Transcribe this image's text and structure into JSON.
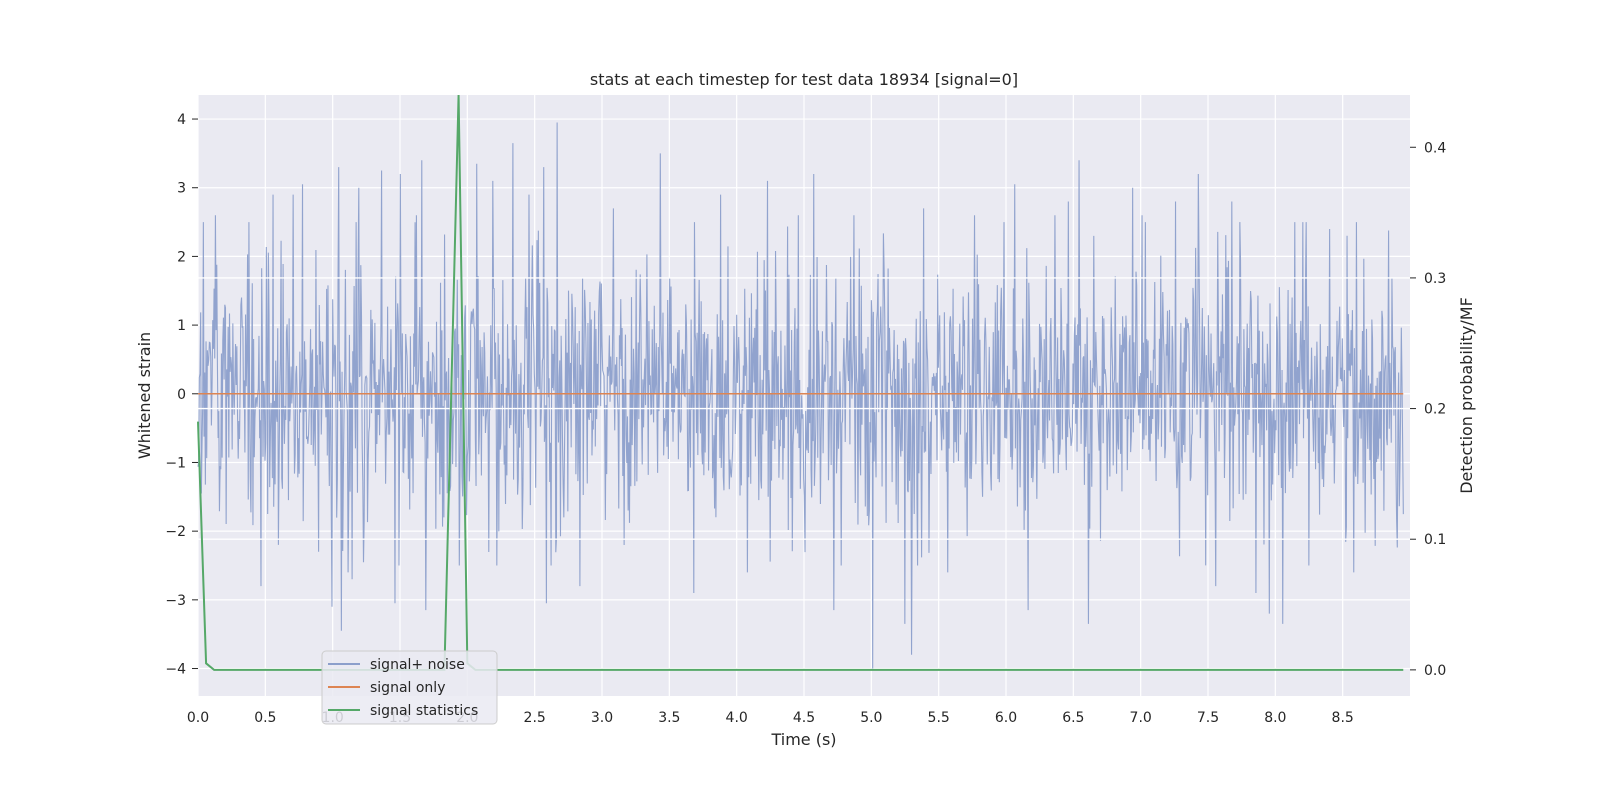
{
  "chart_data": {
    "type": "line",
    "title": "stats at each timestep for test data 18934 [signal=0]",
    "xlabel": "Time (s)",
    "ylabel": "Whitened strain",
    "ylabel_right": "Detection probability/MF",
    "xlim": [
      0,
      9.0
    ],
    "ylim": [
      -4.4,
      4.35
    ],
    "ylim_right": [
      -0.02,
      0.44
    ],
    "x_ticks": [
      0.0,
      0.5,
      1.0,
      1.5,
      2.0,
      2.5,
      3.0,
      3.5,
      4.0,
      4.5,
      5.0,
      5.5,
      6.0,
      6.5,
      7.0,
      7.5,
      8.0,
      8.5
    ],
    "x_tick_labels": [
      "0.0",
      "0.5",
      "1.0",
      "1.5",
      "2.0",
      "2.5",
      "3.0",
      "3.5",
      "4.0",
      "4.5",
      "5.0",
      "5.5",
      "6.0",
      "6.5",
      "7.0",
      "7.5",
      "8.0",
      "8.5"
    ],
    "y_ticks": [
      4,
      3,
      2,
      1,
      0,
      -1,
      -2,
      -3,
      -4
    ],
    "y_tick_labels": [
      "4",
      "3",
      "2",
      "1",
      "0",
      "−1",
      "−2",
      "−3",
      "−4"
    ],
    "y2_ticks": [
      0.4,
      0.3,
      0.2,
      0.1,
      0.0
    ],
    "y2_tick_labels": [
      "0.4",
      "0.3",
      "0.2",
      "0.1",
      "0.0"
    ],
    "grid": true,
    "legend_position": "lower-left",
    "series": [
      {
        "name": "signal+ noise",
        "color": "#8c9fcb",
        "axis": "left",
        "kind": "noise",
        "duration_s": 9.0,
        "peaks": [
          {
            "x": 0.13,
            "y": 2.6
          },
          {
            "x": 0.38,
            "y": 2.5
          },
          {
            "x": 0.47,
            "y": -2.8
          },
          {
            "x": 0.56,
            "y": 2.9
          },
          {
            "x": 0.6,
            "y": -2.2
          },
          {
            "x": 0.71,
            "y": 2.9
          },
          {
            "x": 0.78,
            "y": 3.05
          },
          {
            "x": 0.9,
            "y": -2.3
          },
          {
            "x": 1.0,
            "y": -3.1
          },
          {
            "x": 1.05,
            "y": 3.3
          },
          {
            "x": 1.07,
            "y": -3.45
          },
          {
            "x": 1.12,
            "y": -2.6
          },
          {
            "x": 1.15,
            "y": -2.7
          },
          {
            "x": 1.2,
            "y": 3.0
          },
          {
            "x": 1.37,
            "y": 3.25
          },
          {
            "x": 1.47,
            "y": -3.05
          },
          {
            "x": 1.51,
            "y": 3.2
          },
          {
            "x": 1.63,
            "y": 2.6
          },
          {
            "x": 1.67,
            "y": 3.4
          },
          {
            "x": 1.7,
            "y": -3.15
          },
          {
            "x": 1.95,
            "y": -2.5
          },
          {
            "x": 2.08,
            "y": 3.35
          },
          {
            "x": 2.2,
            "y": 3.1
          },
          {
            "x": 2.35,
            "y": 3.65
          },
          {
            "x": 2.47,
            "y": 2.9
          },
          {
            "x": 2.58,
            "y": 3.3
          },
          {
            "x": 2.6,
            "y": -3.05
          },
          {
            "x": 2.68,
            "y": 3.95
          },
          {
            "x": 2.85,
            "y": -2.8
          },
          {
            "x": 3.1,
            "y": 2.7
          },
          {
            "x": 3.45,
            "y": 3.5
          },
          {
            "x": 3.7,
            "y": -2.9
          },
          {
            "x": 3.9,
            "y": 2.9
          },
          {
            "x": 4.1,
            "y": -2.6
          },
          {
            "x": 4.25,
            "y": 3.1
          },
          {
            "x": 4.48,
            "y": 2.6
          },
          {
            "x": 4.6,
            "y": 3.2
          },
          {
            "x": 4.75,
            "y": -3.15
          },
          {
            "x": 4.9,
            "y": 2.6
          },
          {
            "x": 5.04,
            "y": -4.0
          },
          {
            "x": 5.28,
            "y": -3.35
          },
          {
            "x": 5.33,
            "y": -3.8
          },
          {
            "x": 5.42,
            "y": 2.7
          },
          {
            "x": 5.6,
            "y": -2.6
          },
          {
            "x": 5.8,
            "y": 2.6
          },
          {
            "x": 6.1,
            "y": 3.05
          },
          {
            "x": 6.2,
            "y": 2.7
          },
          {
            "x": 6.2,
            "y": -3.15
          },
          {
            "x": 6.4,
            "y": 2.6
          },
          {
            "x": 6.5,
            "y": 2.8
          },
          {
            "x": 6.58,
            "y": 3.4
          },
          {
            "x": 6.65,
            "y": -3.35
          },
          {
            "x": 6.98,
            "y": 3.0
          },
          {
            "x": 7.05,
            "y": 2.6
          },
          {
            "x": 7.3,
            "y": 2.8
          },
          {
            "x": 7.47,
            "y": 3.2
          },
          {
            "x": 7.6,
            "y": -2.8
          },
          {
            "x": 7.72,
            "y": 2.8
          },
          {
            "x": 7.9,
            "y": -2.9
          },
          {
            "x": 8.0,
            "y": 2.6
          },
          {
            "x": 8.0,
            "y": -3.2
          },
          {
            "x": 8.1,
            "y": -3.35
          },
          {
            "x": 8.25,
            "y": 2.5
          },
          {
            "x": 8.45,
            "y": 2.4
          },
          {
            "x": 8.58,
            "y": 2.3
          },
          {
            "x": 8.63,
            "y": -2.6
          }
        ]
      },
      {
        "name": "signal only",
        "color": "#dd8452",
        "axis": "left",
        "x": [
          0.0,
          8.95
        ],
        "y": [
          0.0,
          0.0
        ]
      },
      {
        "name": "signal statistics",
        "color": "#55a868",
        "axis": "right",
        "x": [
          0.0,
          0.06,
          0.12,
          1.83,
          1.935,
          2.0,
          2.06,
          8.95
        ],
        "y": [
          0.19,
          0.005,
          0.0,
          0.0,
          0.44,
          0.005,
          0.0,
          0.0
        ]
      }
    ]
  }
}
